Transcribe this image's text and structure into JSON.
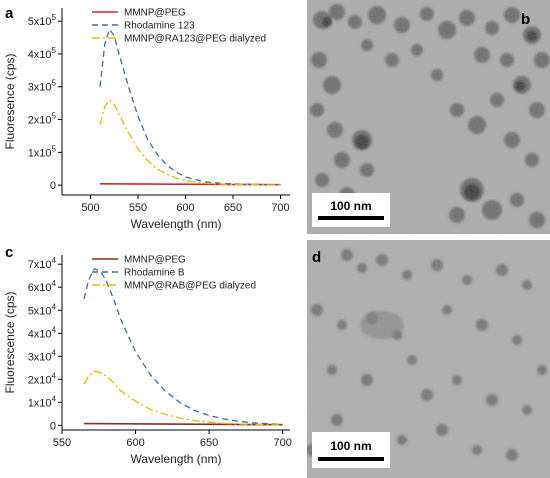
{
  "panels": {
    "a": "a",
    "b": "b",
    "c": "c",
    "d": "d"
  },
  "scale_bar_b": "100 nm",
  "scale_bar_d": "100 nm",
  "chart_data": [
    {
      "panel": "a",
      "type": "line",
      "xlabel": "Wavelength (nm)",
      "ylabel": "Fluoresence (cps)",
      "xlim": [
        470,
        710
      ],
      "ylim": [
        -30000,
        540000
      ],
      "xticks": [
        500,
        550,
        600,
        650,
        700
      ],
      "yticks": [
        {
          "value": 0,
          "base": "0",
          "exp": ""
        },
        {
          "value": 100000,
          "base": "1x10",
          "exp": "5"
        },
        {
          "value": 200000,
          "base": "2x10",
          "exp": "5"
        },
        {
          "value": 300000,
          "base": "3x10",
          "exp": "5"
        },
        {
          "value": 400000,
          "base": "4x10",
          "exp": "5"
        },
        {
          "value": 500000,
          "base": "5x10",
          "exp": "5"
        }
      ],
      "legend_position": "top-right",
      "series": [
        {
          "name": "MMNP@PEG",
          "color": "#d62728",
          "style": "solid",
          "x": [
            510,
            700
          ],
          "y": [
            4000,
            1500
          ]
        },
        {
          "name": "Rhodamine 123",
          "color": "#3c6aa8",
          "style": "dashed",
          "x": [
            510,
            515,
            520,
            525,
            530,
            540,
            550,
            560,
            570,
            580,
            590,
            600,
            620,
            640,
            660,
            680,
            700
          ],
          "y": [
            300000,
            430000,
            475000,
            455000,
            400000,
            300000,
            210000,
            140000,
            95000,
            62000,
            40000,
            25000,
            10000,
            5000,
            3000,
            2000,
            1000
          ]
        },
        {
          "name": "MMNP@RA123@PEG dialyzed",
          "color": "#e6b800",
          "style": "dashdot",
          "x": [
            510,
            515,
            520,
            525,
            530,
            540,
            550,
            560,
            570,
            580,
            590,
            600,
            620,
            640,
            660,
            680,
            700
          ],
          "y": [
            185000,
            240000,
            260000,
            245000,
            215000,
            160000,
            110000,
            75000,
            50000,
            33000,
            22000,
            14000,
            6000,
            3000,
            2000,
            1000,
            500
          ]
        }
      ]
    },
    {
      "panel": "c",
      "type": "line",
      "xlabel": "Wavelength (nm)",
      "ylabel": "Fluorescence (cps)",
      "xlim": [
        550,
        705
      ],
      "ylim": [
        -2000,
        74000
      ],
      "xticks": [
        550,
        600,
        650,
        700
      ],
      "yticks": [
        {
          "value": 0,
          "base": "0",
          "exp": ""
        },
        {
          "value": 10000,
          "base": "1x10",
          "exp": "4"
        },
        {
          "value": 20000,
          "base": "2x10",
          "exp": "4"
        },
        {
          "value": 30000,
          "base": "3x10",
          "exp": "4"
        },
        {
          "value": 40000,
          "base": "4x10",
          "exp": "4"
        },
        {
          "value": 50000,
          "base": "5x10",
          "exp": "4"
        },
        {
          "value": 60000,
          "base": "6x10",
          "exp": "4"
        },
        {
          "value": 70000,
          "base": "7x10",
          "exp": "4"
        }
      ],
      "legend_position": "top-right",
      "series": [
        {
          "name": "MMNP@PEG",
          "color": "#8b2e1f",
          "style": "solid",
          "x": [
            565,
            700
          ],
          "y": [
            800,
            300
          ]
        },
        {
          "name": "Rhodamine B",
          "color": "#3c6aa8",
          "style": "dashed",
          "x": [
            565,
            568,
            572,
            576,
            580,
            585,
            590,
            600,
            610,
            620,
            630,
            640,
            650,
            660,
            670,
            680,
            690,
            700
          ],
          "y": [
            55000,
            63000,
            68000,
            67000,
            63000,
            55000,
            46000,
            32000,
            22000,
            15000,
            10000,
            6500,
            4300,
            2800,
            1800,
            1100,
            700,
            400
          ]
        },
        {
          "name": "MMNP@RAB@PEG dialyzed",
          "color": "#e6b800",
          "style": "dashdot",
          "x": [
            565,
            568,
            572,
            576,
            580,
            585,
            590,
            600,
            610,
            620,
            630,
            640,
            650,
            660,
            670,
            680,
            690,
            700
          ],
          "y": [
            18000,
            21500,
            23500,
            23000,
            21500,
            18500,
            15000,
            10500,
            7000,
            4800,
            3200,
            2100,
            1400,
            900,
            600,
            400,
            250,
            150
          ]
        }
      ]
    }
  ]
}
